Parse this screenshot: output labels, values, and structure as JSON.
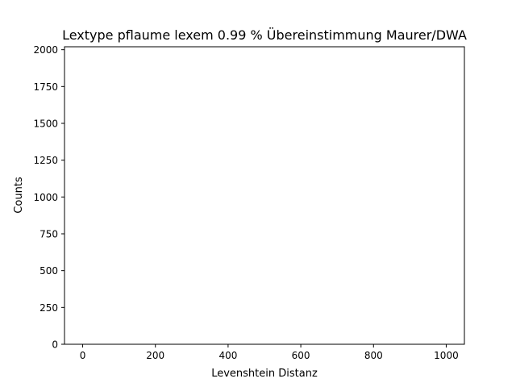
{
  "chart_data": {
    "type": "bar",
    "title": "Lextype pflaume lexem 0.99 % Übereinstimmung Maurer/DWA",
    "xlabel": "Levenshtein Distanz",
    "ylabel": "Counts",
    "xlim": [
      -50,
      1050
    ],
    "ylim": [
      0,
      2020
    ],
    "xticks": [
      0,
      200,
      400,
      600,
      800,
      1000
    ],
    "xtick_labels": [
      "0",
      "200",
      "400",
      "600",
      "800",
      "1000"
    ],
    "yticks": [
      0,
      250,
      500,
      750,
      1000,
      1250,
      1500,
      1750,
      2000
    ],
    "ytick_labels": [
      "0",
      "250",
      "500",
      "750",
      "1000",
      "1250",
      "1500",
      "1750",
      "2000"
    ],
    "grid": false,
    "bins": [],
    "counts": []
  }
}
